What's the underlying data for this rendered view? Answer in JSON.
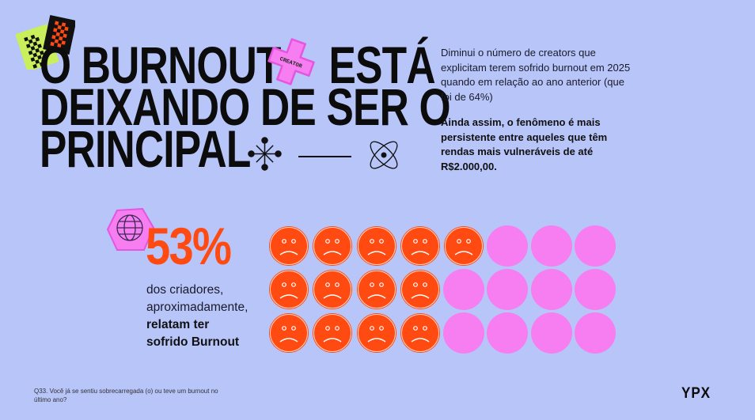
{
  "title": {
    "lines": [
      "O BURNOUT",
      "DEIXANDO DE SER O",
      "PRINCIPAL"
    ],
    "line1_end": "ESTÁ",
    "sticker_label": "CREATOR"
  },
  "intro": {
    "paragraph": "Diminui o número de creators que explicitam terem sofrido burnout em 2025 quando em relação ao ano anterior (que foi de 64%)",
    "highlight": "Ainda assim, o fenômeno é mais persistente entre aqueles que têm rendas mais vulneráveis de até R$2.000,00."
  },
  "stat": {
    "value": "53%",
    "desc_regular_1": "dos criadores,",
    "desc_regular_2": "aproximadamente,",
    "desc_bold_1": "relatam ter",
    "desc_bold_2": "sofrido Burnout"
  },
  "pictogram": {
    "columns": 8,
    "rows": [
      {
        "sad": 5,
        "empty": 3
      },
      {
        "sad": 4,
        "empty": 4
      },
      {
        "sad": 4,
        "empty": 4
      }
    ],
    "sad_icon": "sad-face-icon",
    "colors": {
      "sad": "#ff4a12",
      "empty": "#f77ef0",
      "background": "#b7c5f9"
    }
  },
  "footer": {
    "question": "Q33. Você já se sentiu sobrecarregada (o) ou teve um burnout no último ano?",
    "logo": "YPX"
  }
}
